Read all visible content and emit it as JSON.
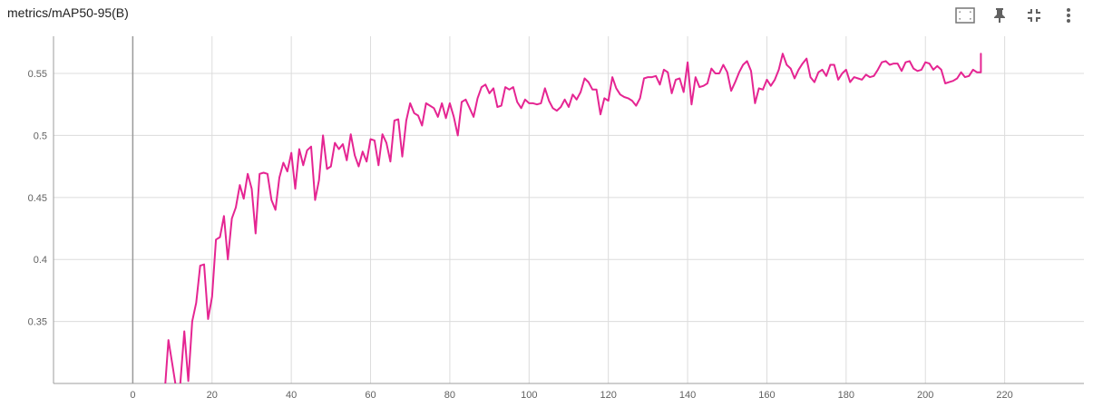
{
  "card": {
    "title": "metrics/mAP50-95(B)"
  },
  "toolbar": {
    "icons": [
      "fit-domain-icon",
      "pin-icon",
      "collapse-icon",
      "more-vert-icon"
    ]
  },
  "colors": {
    "series": "#e52592",
    "grid": "#dcdcdc",
    "axis_zero": "#999999",
    "tick_text": "#616161"
  },
  "chart_data": {
    "type": "line",
    "title": "",
    "xlabel": "",
    "ylabel": "",
    "xlim": [
      -20,
      240
    ],
    "ylim": [
      0.3,
      0.58
    ],
    "x_ticks": [
      0,
      20,
      40,
      60,
      80,
      100,
      120,
      140,
      160,
      180,
      200,
      220
    ],
    "y_ticks": [
      0.35,
      0.4,
      0.45,
      0.5,
      0.55
    ],
    "grid": true,
    "series": [
      {
        "x": [
          8,
          9,
          10,
          11,
          12,
          13,
          14,
          15,
          16,
          17,
          18,
          19,
          20,
          21,
          22,
          23,
          24,
          25,
          26,
          27,
          28,
          29,
          30,
          31,
          32,
          33,
          34,
          35,
          36,
          37,
          38,
          39,
          40,
          41,
          42,
          43,
          44,
          45,
          46,
          47,
          48,
          49,
          50,
          51,
          52,
          53,
          54,
          55,
          56,
          57,
          58,
          59,
          60,
          61,
          62,
          63,
          64,
          65,
          66,
          67,
          68,
          69,
          70,
          71,
          72,
          73,
          74,
          75,
          76,
          77,
          78,
          79,
          80,
          81,
          82,
          83,
          84,
          85,
          86,
          87,
          88,
          89,
          90,
          91,
          92,
          93,
          94,
          95,
          96,
          97,
          98,
          99,
          100,
          101,
          102,
          103,
          104,
          105,
          106,
          107,
          108,
          109,
          110,
          111,
          112,
          113,
          114,
          115,
          116,
          117,
          118,
          119,
          120,
          121,
          122,
          123,
          124,
          125,
          126,
          127,
          128,
          129,
          130,
          131,
          132,
          133,
          134,
          135,
          136,
          137,
          138,
          139,
          140,
          141,
          142,
          143,
          144,
          145,
          146,
          147,
          148,
          149,
          150,
          151,
          152,
          153,
          154,
          155,
          156,
          157,
          158,
          159,
          160,
          161,
          162,
          163,
          164,
          165,
          166,
          167,
          168,
          169,
          170,
          171,
          172,
          173,
          174,
          175,
          176,
          177,
          178,
          179,
          180,
          181,
          182,
          183,
          184,
          185,
          186,
          187,
          188,
          189,
          190,
          191,
          192,
          193,
          194,
          195,
          196,
          197,
          198,
          199,
          200,
          201,
          202,
          203,
          204,
          205,
          206,
          207,
          208,
          209,
          210,
          211,
          212,
          213,
          214,
          214
        ],
        "y": [
          0.29,
          0.335,
          0.315,
          0.295,
          0.3,
          0.342,
          0.302,
          0.35,
          0.365,
          0.395,
          0.396,
          0.352,
          0.37,
          0.416,
          0.418,
          0.435,
          0.4,
          0.433,
          0.442,
          0.46,
          0.449,
          0.469,
          0.457,
          0.421,
          0.469,
          0.47,
          0.469,
          0.448,
          0.44,
          0.466,
          0.478,
          0.471,
          0.486,
          0.457,
          0.489,
          0.476,
          0.488,
          0.491,
          0.448,
          0.464,
          0.5,
          0.473,
          0.475,
          0.494,
          0.489,
          0.493,
          0.48,
          0.501,
          0.484,
          0.475,
          0.487,
          0.479,
          0.497,
          0.496,
          0.476,
          0.501,
          0.494,
          0.479,
          0.512,
          0.513,
          0.483,
          0.512,
          0.526,
          0.518,
          0.516,
          0.508,
          0.526,
          0.524,
          0.522,
          0.515,
          0.526,
          0.514,
          0.526,
          0.515,
          0.5,
          0.527,
          0.529,
          0.522,
          0.515,
          0.53,
          0.539,
          0.541,
          0.534,
          0.538,
          0.523,
          0.524,
          0.539,
          0.537,
          0.539,
          0.527,
          0.522,
          0.529,
          0.526,
          0.526,
          0.525,
          0.526,
          0.538,
          0.528,
          0.522,
          0.52,
          0.523,
          0.529,
          0.523,
          0.533,
          0.529,
          0.535,
          0.546,
          0.543,
          0.537,
          0.537,
          0.517,
          0.53,
          0.528,
          0.547,
          0.538,
          0.533,
          0.531,
          0.53,
          0.528,
          0.524,
          0.53,
          0.546,
          0.547,
          0.547,
          0.548,
          0.541,
          0.553,
          0.551,
          0.534,
          0.545,
          0.546,
          0.535,
          0.559,
          0.525,
          0.547,
          0.539,
          0.54,
          0.542,
          0.554,
          0.55,
          0.55,
          0.557,
          0.551,
          0.536,
          0.543,
          0.551,
          0.557,
          0.56,
          0.552,
          0.526,
          0.538,
          0.537,
          0.545,
          0.54,
          0.545,
          0.553,
          0.566,
          0.557,
          0.554,
          0.546,
          0.553,
          0.558,
          0.562,
          0.547,
          0.543,
          0.551,
          0.553,
          0.548,
          0.557,
          0.557,
          0.545,
          0.55,
          0.553,
          0.543,
          0.547,
          0.546,
          0.545,
          0.549,
          0.547,
          0.548,
          0.553,
          0.559,
          0.56,
          0.557,
          0.558,
          0.558,
          0.552,
          0.559,
          0.56,
          0.554,
          0.552,
          0.553,
          0.559,
          0.558,
          0.553,
          0.556,
          0.553,
          0.542,
          0.543,
          0.544,
          0.546,
          0.551,
          0.547,
          0.548,
          0.553,
          0.551,
          0.551,
          0.566
        ]
      }
    ]
  }
}
